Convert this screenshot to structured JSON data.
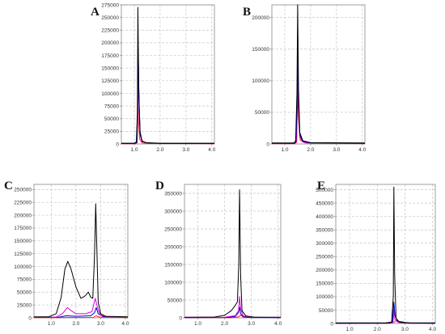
{
  "figure": {
    "background": "#ffffff",
    "frame_color": "#888888",
    "grid_color": "#c8c8c8",
    "grid_style": "dashed"
  },
  "chart_data": [
    {
      "panel_label": "A",
      "type": "line",
      "xlim": [
        0.5,
        4.1
      ],
      "ylim": [
        0,
        275000
      ],
      "xticks": [
        "1.0",
        "2.0",
        "3.0",
        "4.0"
      ],
      "xtick_values": [
        1,
        2,
        3,
        4
      ],
      "yticks": [
        "0",
        "25000",
        "50000",
        "75000",
        "100000",
        "125000",
        "150000",
        "175000",
        "200000",
        "225000",
        "250000",
        "275000"
      ],
      "ytick_values": [
        0,
        25000,
        50000,
        75000,
        100000,
        125000,
        150000,
        175000,
        200000,
        225000,
        250000,
        275000
      ],
      "grid": true,
      "series": [
        {
          "color": "#000000",
          "points": [
            [
              0.5,
              1500
            ],
            [
              1.0,
              1500
            ],
            [
              1.08,
              4000
            ],
            [
              1.12,
              60000
            ],
            [
              1.14,
              270000
            ],
            [
              1.17,
              120000
            ],
            [
              1.22,
              25000
            ],
            [
              1.3,
              6000
            ],
            [
              1.45,
              2500
            ],
            [
              2.0,
              1500
            ],
            [
              4.1,
              1500
            ]
          ]
        },
        {
          "color": "#0000cc",
          "points": [
            [
              0.5,
              1000
            ],
            [
              1.0,
              1000
            ],
            [
              1.1,
              3000
            ],
            [
              1.13,
              60000
            ],
            [
              1.15,
              190000
            ],
            [
              1.18,
              90000
            ],
            [
              1.23,
              18000
            ],
            [
              1.3,
              5000
            ],
            [
              1.5,
              2000
            ],
            [
              2.0,
              1000
            ],
            [
              4.1,
              1000
            ]
          ]
        },
        {
          "color": "#dd00dd",
          "points": [
            [
              0.5,
              1000
            ],
            [
              1.0,
              1000
            ],
            [
              1.1,
              3000
            ],
            [
              1.13,
              55000
            ],
            [
              1.15,
              185000
            ],
            [
              1.18,
              85000
            ],
            [
              1.23,
              17000
            ],
            [
              1.3,
              4500
            ],
            [
              1.5,
              2000
            ],
            [
              2.0,
              1000
            ],
            [
              4.1,
              1000
            ]
          ]
        },
        {
          "color": "#ff2020",
          "points": [
            [
              0.5,
              500
            ],
            [
              1.05,
              500
            ],
            [
              1.11,
              2000
            ],
            [
              1.13,
              100000
            ],
            [
              1.15,
              60000
            ],
            [
              1.2,
              10000
            ],
            [
              1.3,
              2000
            ],
            [
              1.6,
              1000
            ],
            [
              4.1,
              500
            ]
          ]
        }
      ]
    },
    {
      "panel_label": "B",
      "type": "line",
      "xlim": [
        0.5,
        4.1
      ],
      "ylim": [
        0,
        220000
      ],
      "xticks": [
        "1.0",
        "2.0",
        "3.0",
        "4.0"
      ],
      "xtick_values": [
        1,
        2,
        3,
        4
      ],
      "yticks": [
        "0",
        "50000",
        "100000",
        "150000",
        "200000"
      ],
      "ytick_values": [
        0,
        50000,
        100000,
        150000,
        200000
      ],
      "grid": true,
      "series": [
        {
          "color": "#000000",
          "points": [
            [
              0.5,
              1500
            ],
            [
              1.35,
              1500
            ],
            [
              1.42,
              5000
            ],
            [
              1.47,
              80000
            ],
            [
              1.5,
              220000
            ],
            [
              1.53,
              90000
            ],
            [
              1.58,
              18000
            ],
            [
              1.7,
              5000
            ],
            [
              2.0,
              2000
            ],
            [
              4.1,
              1500
            ]
          ]
        },
        {
          "color": "#0000cc",
          "points": [
            [
              0.5,
              1000
            ],
            [
              1.36,
              1000
            ],
            [
              1.43,
              4000
            ],
            [
              1.48,
              60000
            ],
            [
              1.5,
              160000
            ],
            [
              1.53,
              70000
            ],
            [
              1.58,
              14000
            ],
            [
              1.7,
              4000
            ],
            [
              2.0,
              1500
            ],
            [
              4.1,
              1000
            ]
          ]
        },
        {
          "color": "#dd00dd",
          "points": [
            [
              0.5,
              1000
            ],
            [
              1.37,
              1000
            ],
            [
              1.44,
              3000
            ],
            [
              1.48,
              50000
            ],
            [
              1.5,
              130000
            ],
            [
              1.53,
              60000
            ],
            [
              1.58,
              12000
            ],
            [
              1.7,
              3000
            ],
            [
              2.0,
              1500
            ],
            [
              4.1,
              1000
            ]
          ]
        },
        {
          "color": "#ff2020",
          "points": [
            [
              0.5,
              500
            ],
            [
              1.4,
              500
            ],
            [
              1.46,
              3000
            ],
            [
              1.5,
              90000
            ],
            [
              1.53,
              40000
            ],
            [
              1.6,
              6000
            ],
            [
              1.8,
              1500
            ],
            [
              4.1,
              500
            ]
          ]
        }
      ]
    },
    {
      "panel_label": "C",
      "type": "line",
      "xlim": [
        0.3,
        4.1
      ],
      "ylim": [
        0,
        260000
      ],
      "xticks": [
        "1.0",
        "2.0",
        "3.0",
        "4.0"
      ],
      "xtick_values": [
        1,
        2,
        3,
        4
      ],
      "yticks": [
        "0",
        "25000",
        "50000",
        "75000",
        "100000",
        "125000",
        "150000",
        "175000",
        "200000",
        "225000",
        "250000"
      ],
      "ytick_values": [
        0,
        25000,
        50000,
        75000,
        100000,
        125000,
        150000,
        175000,
        200000,
        225000,
        250000
      ],
      "grid": true,
      "series": [
        {
          "color": "#000000",
          "points": [
            [
              0.3,
              2000
            ],
            [
              0.9,
              2000
            ],
            [
              1.2,
              8000
            ],
            [
              1.4,
              40000
            ],
            [
              1.55,
              95000
            ],
            [
              1.67,
              110000
            ],
            [
              1.8,
              95000
            ],
            [
              2.0,
              60000
            ],
            [
              2.2,
              38000
            ],
            [
              2.35,
              42000
            ],
            [
              2.5,
              50000
            ],
            [
              2.6,
              40000
            ],
            [
              2.68,
              38000
            ],
            [
              2.75,
              120000
            ],
            [
              2.8,
              222000
            ],
            [
              2.85,
              130000
            ],
            [
              2.9,
              30000
            ],
            [
              3.0,
              8000
            ],
            [
              3.2,
              3000
            ],
            [
              4.1,
              2000
            ]
          ]
        },
        {
          "color": "#dd00dd",
          "points": [
            [
              0.3,
              1000
            ],
            [
              1.2,
              1500
            ],
            [
              1.45,
              8000
            ],
            [
              1.65,
              20000
            ],
            [
              1.8,
              14000
            ],
            [
              2.0,
              8000
            ],
            [
              2.4,
              8000
            ],
            [
              2.65,
              12000
            ],
            [
              2.78,
              38000
            ],
            [
              2.82,
              30000
            ],
            [
              2.9,
              15000
            ],
            [
              3.0,
              5000
            ],
            [
              3.3,
              2000
            ],
            [
              4.1,
              1000
            ]
          ]
        },
        {
          "color": "#0000cc",
          "points": [
            [
              0.3,
              800
            ],
            [
              1.3,
              1200
            ],
            [
              1.6,
              4000
            ],
            [
              2.0,
              3000
            ],
            [
              2.6,
              4000
            ],
            [
              2.75,
              10000
            ],
            [
              2.82,
              20000
            ],
            [
              2.9,
              8000
            ],
            [
              3.1,
              2500
            ],
            [
              4.1,
              800
            ]
          ]
        },
        {
          "color": "#ff2020",
          "points": [
            [
              0.3,
              500
            ],
            [
              2.7,
              800
            ],
            [
              2.82,
              4000
            ],
            [
              2.95,
              1500
            ],
            [
              4.1,
              500
            ]
          ]
        }
      ]
    },
    {
      "panel_label": "D",
      "type": "line",
      "xlim": [
        0.5,
        4.1
      ],
      "ylim": [
        0,
        375000
      ],
      "xticks": [
        "1.0",
        "2.0",
        "3.0",
        "4.0"
      ],
      "xtick_values": [
        1,
        2,
        3,
        4
      ],
      "yticks": [
        "0",
        "50000",
        "100000",
        "150000",
        "200000",
        "250000",
        "300000",
        "350000"
      ],
      "ytick_values": [
        0,
        50000,
        100000,
        150000,
        200000,
        250000,
        300000,
        350000
      ],
      "grid": true,
      "series": [
        {
          "color": "#000000",
          "points": [
            [
              0.5,
              1500
            ],
            [
              1.6,
              2000
            ],
            [
              2.0,
              7000
            ],
            [
              2.25,
              20000
            ],
            [
              2.4,
              35000
            ],
            [
              2.48,
              45000
            ],
            [
              2.53,
              150000
            ],
            [
              2.56,
              360000
            ],
            [
              2.6,
              120000
            ],
            [
              2.65,
              20000
            ],
            [
              2.8,
              5000
            ],
            [
              3.1,
              2000
            ],
            [
              4.1,
              1500
            ]
          ]
        },
        {
          "color": "#dd00dd",
          "points": [
            [
              0.5,
              800
            ],
            [
              2.0,
              1500
            ],
            [
              2.4,
              6000
            ],
            [
              2.52,
              20000
            ],
            [
              2.56,
              60000
            ],
            [
              2.6,
              25000
            ],
            [
              2.7,
              5000
            ],
            [
              3.0,
              1500
            ],
            [
              4.1,
              800
            ]
          ]
        },
        {
          "color": "#0000cc",
          "points": [
            [
              0.5,
              600
            ],
            [
              2.1,
              1000
            ],
            [
              2.4,
              4000
            ],
            [
              2.52,
              15000
            ],
            [
              2.56,
              30000
            ],
            [
              2.6,
              12000
            ],
            [
              2.7,
              3000
            ],
            [
              3.0,
              1000
            ],
            [
              4.1,
              600
            ]
          ]
        },
        {
          "color": "#ff2020",
          "points": [
            [
              0.5,
              400
            ],
            [
              2.3,
              500
            ],
            [
              2.53,
              3000
            ],
            [
              2.6,
              8000
            ],
            [
              2.7,
              2000
            ],
            [
              4.1,
              400
            ]
          ]
        }
      ]
    },
    {
      "panel_label": "E",
      "type": "line",
      "xlim": [
        0.5,
        4.1
      ],
      "ylim": [
        0,
        520000
      ],
      "xticks": [
        "1.0",
        "2.0",
        "3.0",
        "4.0"
      ],
      "xtick_values": [
        1,
        2,
        3,
        4
      ],
      "yticks": [
        "0",
        "50000",
        "100000",
        "150000",
        "200000",
        "250000",
        "300000",
        "350000",
        "400000",
        "450000",
        "500000"
      ],
      "ytick_values": [
        0,
        50000,
        100000,
        150000,
        200000,
        250000,
        300000,
        350000,
        400000,
        450000,
        500000
      ],
      "grid": true,
      "series": [
        {
          "color": "#000000",
          "points": [
            [
              0.5,
              2000
            ],
            [
              2.3,
              2000
            ],
            [
              2.52,
              5000
            ],
            [
              2.58,
              100000
            ],
            [
              2.6,
              510000
            ],
            [
              2.63,
              180000
            ],
            [
              2.68,
              20000
            ],
            [
              2.8,
              5000
            ],
            [
              3.2,
              2000
            ],
            [
              4.1,
              2000
            ]
          ]
        },
        {
          "color": "#0000cc",
          "points": [
            [
              0.5,
              1000
            ],
            [
              2.4,
              1500
            ],
            [
              2.55,
              5000
            ],
            [
              2.6,
              80000
            ],
            [
              2.64,
              30000
            ],
            [
              2.72,
              10000
            ],
            [
              2.85,
              4000
            ],
            [
              3.2,
              1500
            ],
            [
              4.1,
              1000
            ]
          ]
        },
        {
          "color": "#dd00dd",
          "points": [
            [
              0.5,
              800
            ],
            [
              2.45,
              1200
            ],
            [
              2.57,
              5000
            ],
            [
              2.6,
              50000
            ],
            [
              2.64,
              15000
            ],
            [
              2.75,
              4000
            ],
            [
              3.2,
              1000
            ],
            [
              4.1,
              800
            ]
          ]
        },
        {
          "color": "#ff2020",
          "points": [
            [
              0.5,
              500
            ],
            [
              2.5,
              800
            ],
            [
              2.62,
              5000
            ],
            [
              2.7,
              12000
            ],
            [
              2.8,
              8000
            ],
            [
              2.9,
              7000
            ],
            [
              3.0,
              4000
            ],
            [
              3.2,
              1500
            ],
            [
              4.1,
              500
            ]
          ]
        }
      ]
    }
  ]
}
